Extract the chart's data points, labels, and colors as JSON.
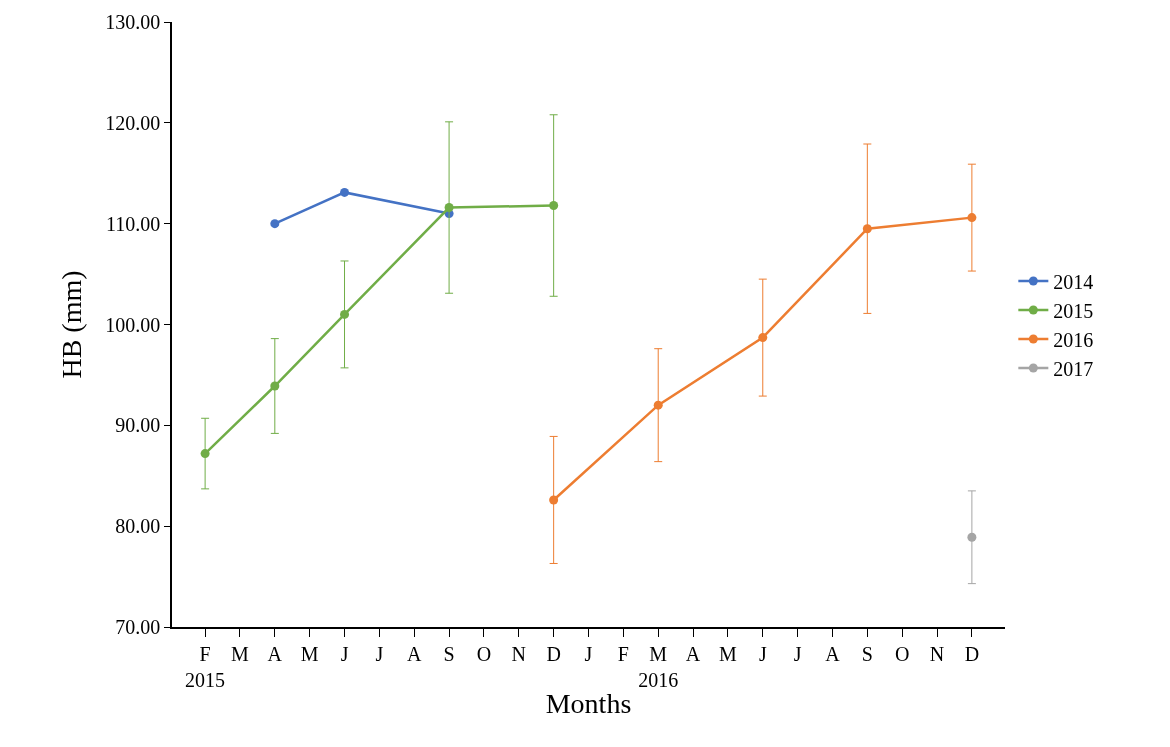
{
  "chart_data": {
    "type": "line",
    "xlabel": "Months",
    "ylabel": "HB (mm)",
    "categories": [
      "F\n2015",
      "M",
      "A",
      "M",
      "J",
      "J",
      "A",
      "S",
      "O",
      "N",
      "D",
      "J",
      "F",
      "M\n2016",
      "A",
      "M",
      "J",
      "J",
      "A",
      "S",
      "O",
      "N",
      "D"
    ],
    "series": [
      {
        "name": "2014",
        "color": "#4472c4",
        "values": [
          null,
          null,
          110.0,
          null,
          113.1,
          null,
          null,
          111.0,
          null,
          null,
          null,
          null,
          null,
          null,
          null,
          null,
          null,
          null,
          null,
          null,
          null,
          null,
          null
        ]
      },
      {
        "name": "2015",
        "color": "#70ad47",
        "values": [
          87.2,
          null,
          93.9,
          null,
          101.0,
          null,
          null,
          111.6,
          null,
          null,
          111.8,
          null,
          null,
          null,
          null,
          null,
          null,
          null,
          null,
          null,
          null,
          null,
          null
        ],
        "errors": [
          3.5,
          null,
          4.7,
          null,
          5.3,
          null,
          null,
          8.5,
          null,
          null,
          9.0,
          null,
          null,
          null,
          null,
          null,
          null,
          null,
          null,
          null,
          null,
          null,
          null
        ]
      },
      {
        "name": "2016",
        "color": "#ed7d31",
        "values": [
          null,
          null,
          null,
          null,
          null,
          null,
          null,
          null,
          null,
          null,
          82.6,
          null,
          null,
          92.0,
          null,
          null,
          98.7,
          null,
          null,
          109.5,
          null,
          null,
          110.6
        ],
        "errors": [
          null,
          null,
          null,
          null,
          null,
          null,
          null,
          null,
          null,
          null,
          6.3,
          null,
          null,
          5.6,
          null,
          null,
          5.8,
          null,
          null,
          8.4,
          null,
          null,
          5.3
        ]
      },
      {
        "name": "2017",
        "color": "#a5a5a5",
        "values": [
          null,
          null,
          null,
          null,
          null,
          null,
          null,
          null,
          null,
          null,
          null,
          null,
          null,
          null,
          null,
          null,
          null,
          null,
          null,
          null,
          null,
          null,
          78.9
        ],
        "errors": [
          null,
          null,
          null,
          null,
          null,
          null,
          null,
          null,
          null,
          null,
          null,
          null,
          null,
          null,
          null,
          null,
          null,
          null,
          null,
          null,
          null,
          null,
          4.6
        ]
      }
    ],
    "ylim": [
      70,
      130
    ],
    "yticks": [
      {
        "value": 70,
        "label": "70.00"
      },
      {
        "value": 80,
        "label": "80.00"
      },
      {
        "value": 90,
        "label": "90.00"
      },
      {
        "value": 100,
        "label": "100.00"
      },
      {
        "value": 110,
        "label": "110.00"
      },
      {
        "value": 120,
        "label": "120.00"
      },
      {
        "value": 130,
        "label": "130.00"
      }
    ],
    "legend": "right",
    "marker": "circle",
    "line_style": "solid"
  }
}
